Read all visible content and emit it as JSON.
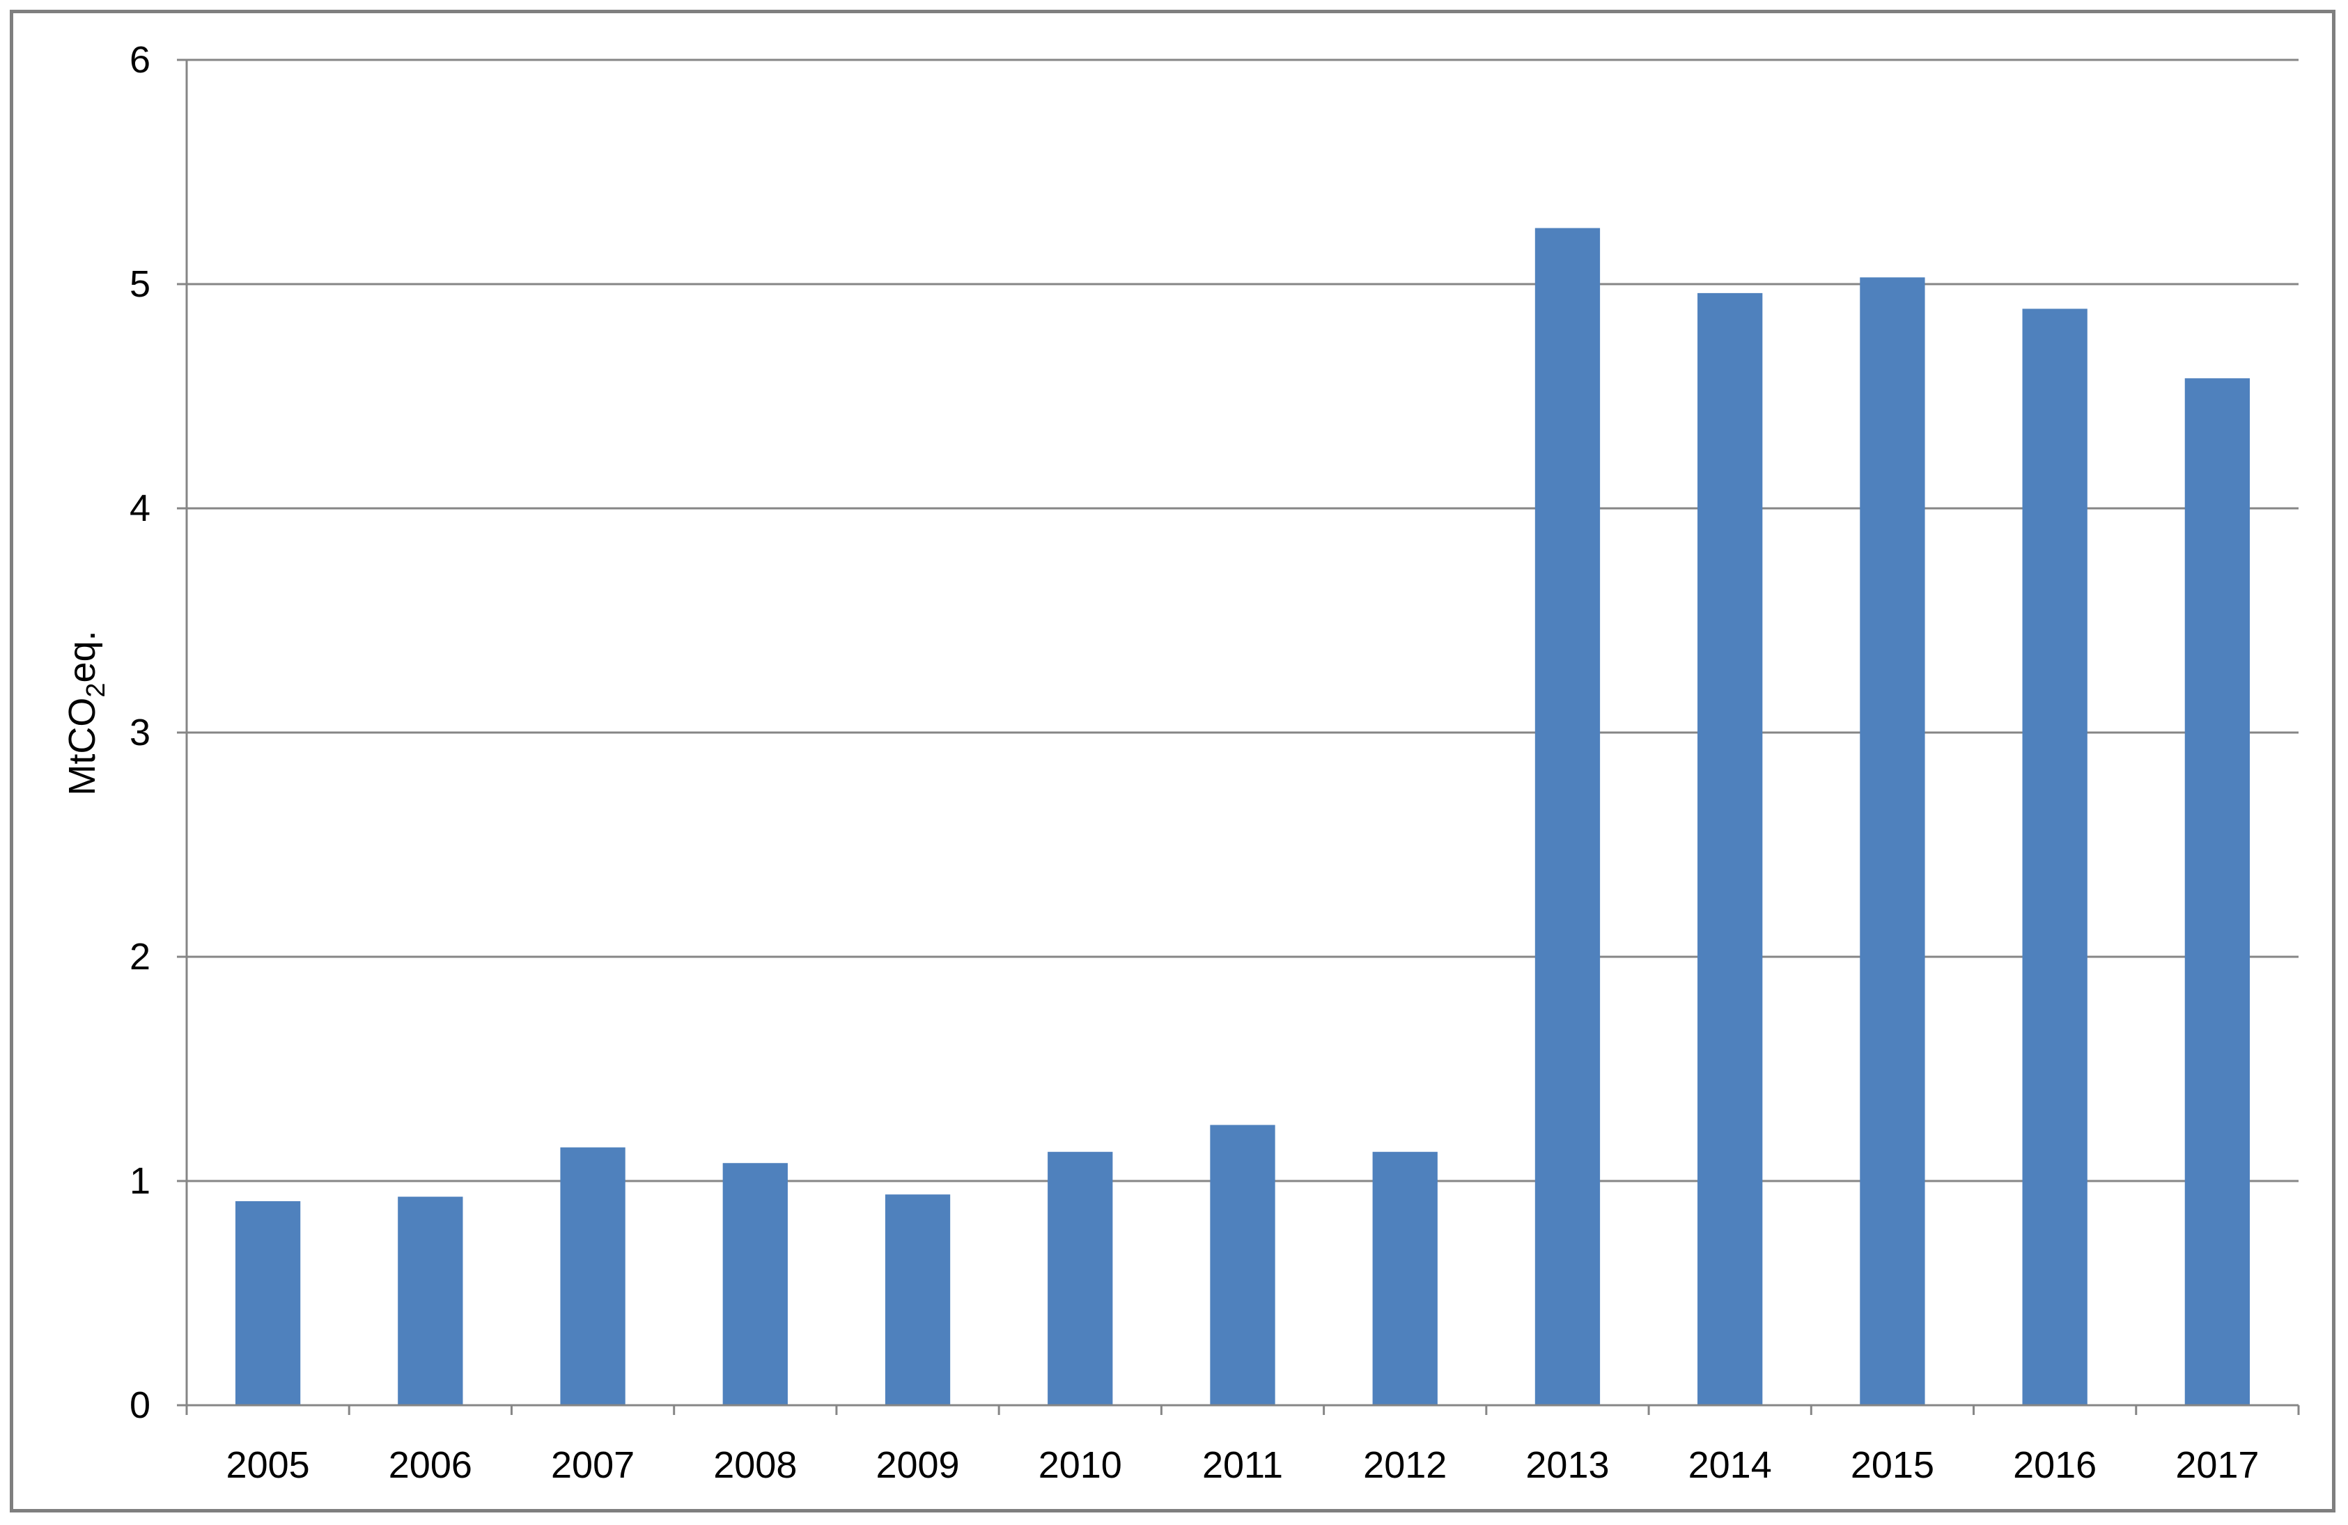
{
  "chart_data": {
    "type": "bar",
    "categories": [
      "2005",
      "2006",
      "2007",
      "2008",
      "2009",
      "2010",
      "2011",
      "2012",
      "2013",
      "2014",
      "2015",
      "2016",
      "2017"
    ],
    "series": [
      {
        "values": [
          0.91,
          0.93,
          1.15,
          1.08,
          0.94,
          1.13,
          1.25,
          1.13,
          5.25,
          4.96,
          5.03,
          4.89,
          4.58
        ]
      }
    ],
    "ylabel": {
      "main": "MtCO",
      "subscript": "2",
      "suffix": "eq."
    },
    "ylim": [
      0,
      6
    ],
    "yticks": [
      "0",
      "1",
      "2",
      "3",
      "4",
      "5",
      "6"
    ],
    "grid": true,
    "legend": "none",
    "colors": {
      "bar": "#4f81bd",
      "grid": "#868686",
      "axis": "#868686"
    }
  }
}
